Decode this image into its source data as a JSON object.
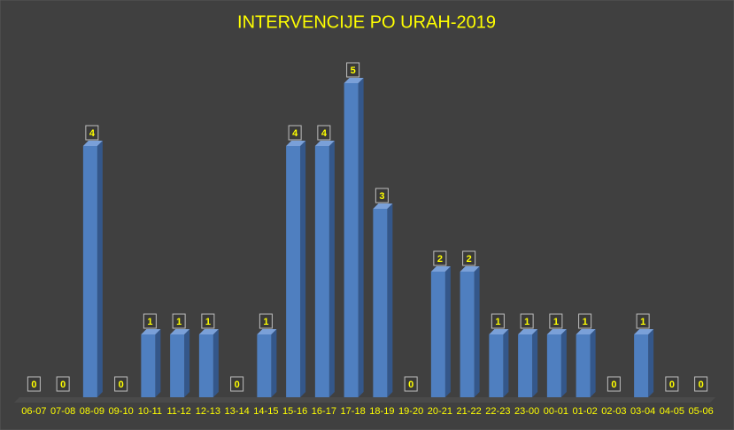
{
  "chart_data": {
    "type": "bar",
    "title": "INTERVENCIJE PO URAH-2019",
    "categories": [
      "06-07",
      "07-08",
      "08-09",
      "09-10",
      "10-11",
      "11-12",
      "12-13",
      "13-14",
      "14-15",
      "15-16",
      "16-17",
      "17-18",
      "18-19",
      "19-20",
      "20-21",
      "21-22",
      "22-23",
      "23-00",
      "00-01",
      "01-02",
      "02-03",
      "03-04",
      "04-05",
      "05-06"
    ],
    "values": [
      0,
      0,
      4,
      0,
      1,
      1,
      1,
      0,
      1,
      4,
      4,
      5,
      3,
      0,
      2,
      2,
      1,
      1,
      1,
      1,
      0,
      1,
      0,
      0
    ],
    "color": "#4f7fc0"
  }
}
